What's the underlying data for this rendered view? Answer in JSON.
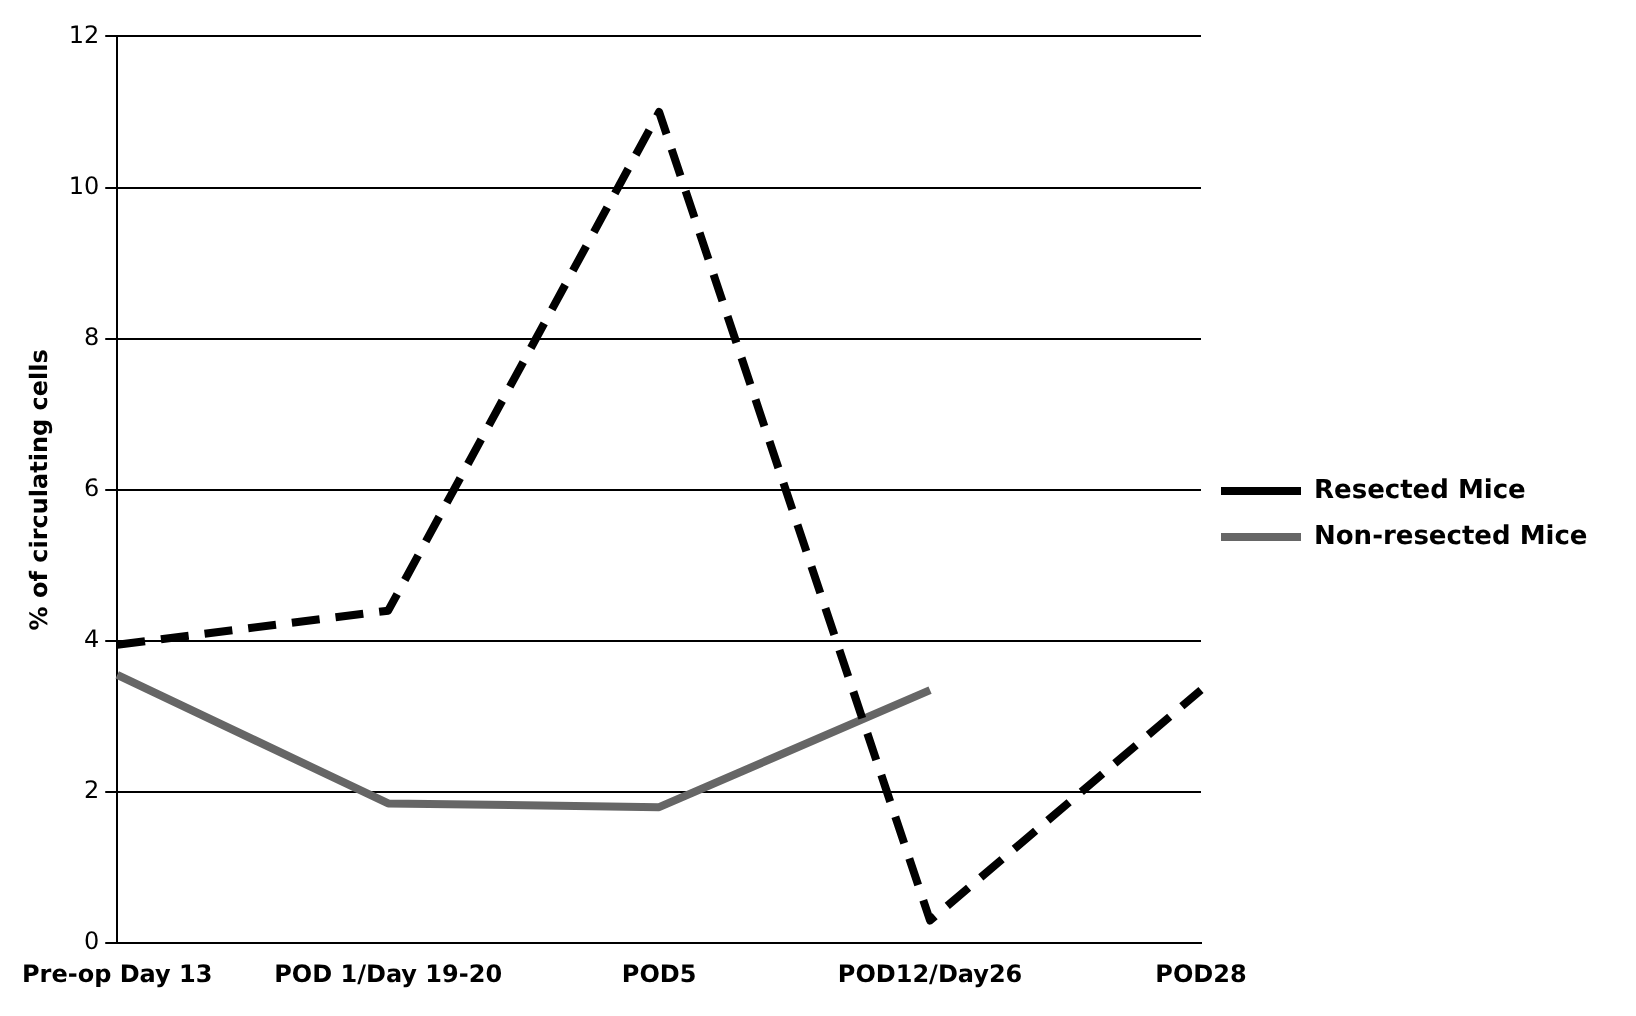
{
  "chart_data": {
    "type": "line",
    "ylabel": "% of circulating cells",
    "categories": [
      "Pre-op Day 13",
      "POD 1/Day 19-20",
      "POD5",
      "POD12/Day26",
      "POD28"
    ],
    "series": [
      {
        "name": "Resected Mice",
        "color": "#000000",
        "line_style": "dashed",
        "values": [
          3.95,
          4.4,
          11.0,
          0.3,
          3.35
        ]
      },
      {
        "name": "Non-resected Mice",
        "color": "#666666",
        "line_style": "solid",
        "values": [
          3.55,
          1.85,
          1.8,
          3.35,
          null
        ]
      }
    ],
    "ylim": [
      0,
      12
    ],
    "yticks": [
      0,
      2,
      4,
      6,
      8,
      10,
      12
    ],
    "grid": "y",
    "legend": "right",
    "marker": "none"
  }
}
